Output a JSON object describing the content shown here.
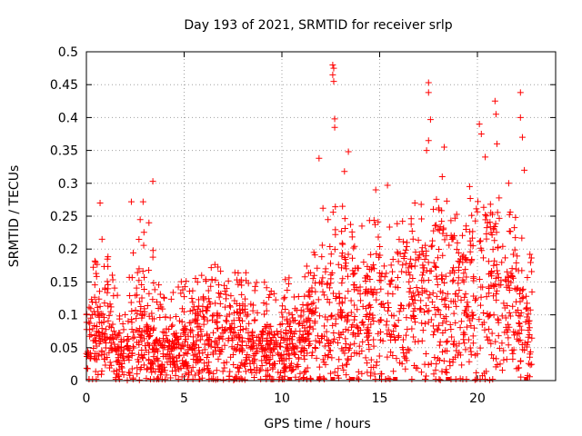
{
  "chart_data": {
    "type": "scatter",
    "title": "Day 193 of 2021, SRMTID for receiver srlp",
    "xlabel": "GPS time / hours",
    "ylabel": "SRMTID / TECUs",
    "xlim": [
      0,
      24
    ],
    "ylim": [
      0,
      0.5
    ],
    "x_ticks": [
      0,
      5,
      10,
      15,
      20
    ],
    "y_ticks": [
      0,
      0.05,
      0.1,
      0.15,
      0.2,
      0.25,
      0.3,
      0.35,
      0.4,
      0.45,
      0.5
    ],
    "x_tick_labels": [
      "0",
      "5",
      "10",
      "15",
      "20"
    ],
    "y_tick_labels": [
      "0",
      "0.05",
      "0.1",
      "0.15",
      "0.2",
      "0.25",
      "0.3",
      "0.35",
      "0.4",
      "0.45",
      "0.5"
    ],
    "grid": true,
    "marker": "+",
    "color": "#ff0000",
    "gap_markers_x": [
      10.4,
      11.9,
      12.6,
      13.6,
      15.8,
      18.5,
      22.5
    ],
    "highlight_points": [
      {
        "x": 0.7,
        "y": 0.27
      },
      {
        "x": 0.8,
        "y": 0.215
      },
      {
        "x": 2.3,
        "y": 0.272
      },
      {
        "x": 2.9,
        "y": 0.272
      },
      {
        "x": 3.4,
        "y": 0.303
      },
      {
        "x": 3.2,
        "y": 0.24
      },
      {
        "x": 11.9,
        "y": 0.338
      },
      {
        "x": 12.1,
        "y": 0.262
      },
      {
        "x": 12.6,
        "y": 0.48
      },
      {
        "x": 12.65,
        "y": 0.475
      },
      {
        "x": 12.6,
        "y": 0.465
      },
      {
        "x": 12.65,
        "y": 0.455
      },
      {
        "x": 12.7,
        "y": 0.398
      },
      {
        "x": 12.7,
        "y": 0.385
      },
      {
        "x": 13.2,
        "y": 0.318
      },
      {
        "x": 13.4,
        "y": 0.348
      },
      {
        "x": 13.1,
        "y": 0.265
      },
      {
        "x": 14.8,
        "y": 0.29
      },
      {
        "x": 15.4,
        "y": 0.297
      },
      {
        "x": 17.5,
        "y": 0.453
      },
      {
        "x": 17.5,
        "y": 0.438
      },
      {
        "x": 17.6,
        "y": 0.397
      },
      {
        "x": 17.5,
        "y": 0.365
      },
      {
        "x": 17.4,
        "y": 0.35
      },
      {
        "x": 18.3,
        "y": 0.355
      },
      {
        "x": 18.2,
        "y": 0.31
      },
      {
        "x": 20.1,
        "y": 0.39
      },
      {
        "x": 20.2,
        "y": 0.375
      },
      {
        "x": 20.4,
        "y": 0.34
      },
      {
        "x": 20.9,
        "y": 0.425
      },
      {
        "x": 20.95,
        "y": 0.405
      },
      {
        "x": 21.0,
        "y": 0.36
      },
      {
        "x": 22.2,
        "y": 0.438
      },
      {
        "x": 22.2,
        "y": 0.4
      },
      {
        "x": 22.3,
        "y": 0.37
      },
      {
        "x": 22.4,
        "y": 0.32
      },
      {
        "x": 21.6,
        "y": 0.3
      },
      {
        "x": 19.6,
        "y": 0.295
      },
      {
        "x": 16.8,
        "y": 0.27
      }
    ],
    "density_profile": [
      {
        "x": 0.0,
        "y_max": 0.17,
        "y_center": 0.06
      },
      {
        "x": 1.0,
        "y_max": 0.2,
        "y_center": 0.06
      },
      {
        "x": 2.0,
        "y_max": 0.1,
        "y_center": 0.03
      },
      {
        "x": 2.5,
        "y_max": 0.25,
        "y_center": 0.07
      },
      {
        "x": 3.0,
        "y_max": 0.24,
        "y_center": 0.06
      },
      {
        "x": 4.0,
        "y_max": 0.14,
        "y_center": 0.04
      },
      {
        "x": 5.0,
        "y_max": 0.16,
        "y_center": 0.05
      },
      {
        "x": 6.0,
        "y_max": 0.19,
        "y_center": 0.07
      },
      {
        "x": 7.0,
        "y_max": 0.17,
        "y_center": 0.07
      },
      {
        "x": 8.0,
        "y_max": 0.17,
        "y_center": 0.06
      },
      {
        "x": 9.0,
        "y_max": 0.15,
        "y_center": 0.05
      },
      {
        "x": 10.0,
        "y_max": 0.18,
        "y_center": 0.05
      },
      {
        "x": 11.0,
        "y_max": 0.16,
        "y_center": 0.06
      },
      {
        "x": 12.0,
        "y_max": 0.26,
        "y_center": 0.09
      },
      {
        "x": 13.0,
        "y_max": 0.27,
        "y_center": 0.1
      },
      {
        "x": 14.0,
        "y_max": 0.24,
        "y_center": 0.1
      },
      {
        "x": 15.0,
        "y_max": 0.25,
        "y_center": 0.1
      },
      {
        "x": 16.0,
        "y_max": 0.24,
        "y_center": 0.11
      },
      {
        "x": 17.0,
        "y_max": 0.27,
        "y_center": 0.12
      },
      {
        "x": 18.0,
        "y_max": 0.29,
        "y_center": 0.13
      },
      {
        "x": 19.0,
        "y_max": 0.26,
        "y_center": 0.12
      },
      {
        "x": 20.0,
        "y_max": 0.3,
        "y_center": 0.14
      },
      {
        "x": 21.0,
        "y_max": 0.3,
        "y_center": 0.13
      },
      {
        "x": 22.0,
        "y_max": 0.28,
        "y_center": 0.12
      },
      {
        "x": 22.7,
        "y_max": 0.2,
        "y_center": 0.06
      }
    ],
    "x_data_end": 22.8
  }
}
